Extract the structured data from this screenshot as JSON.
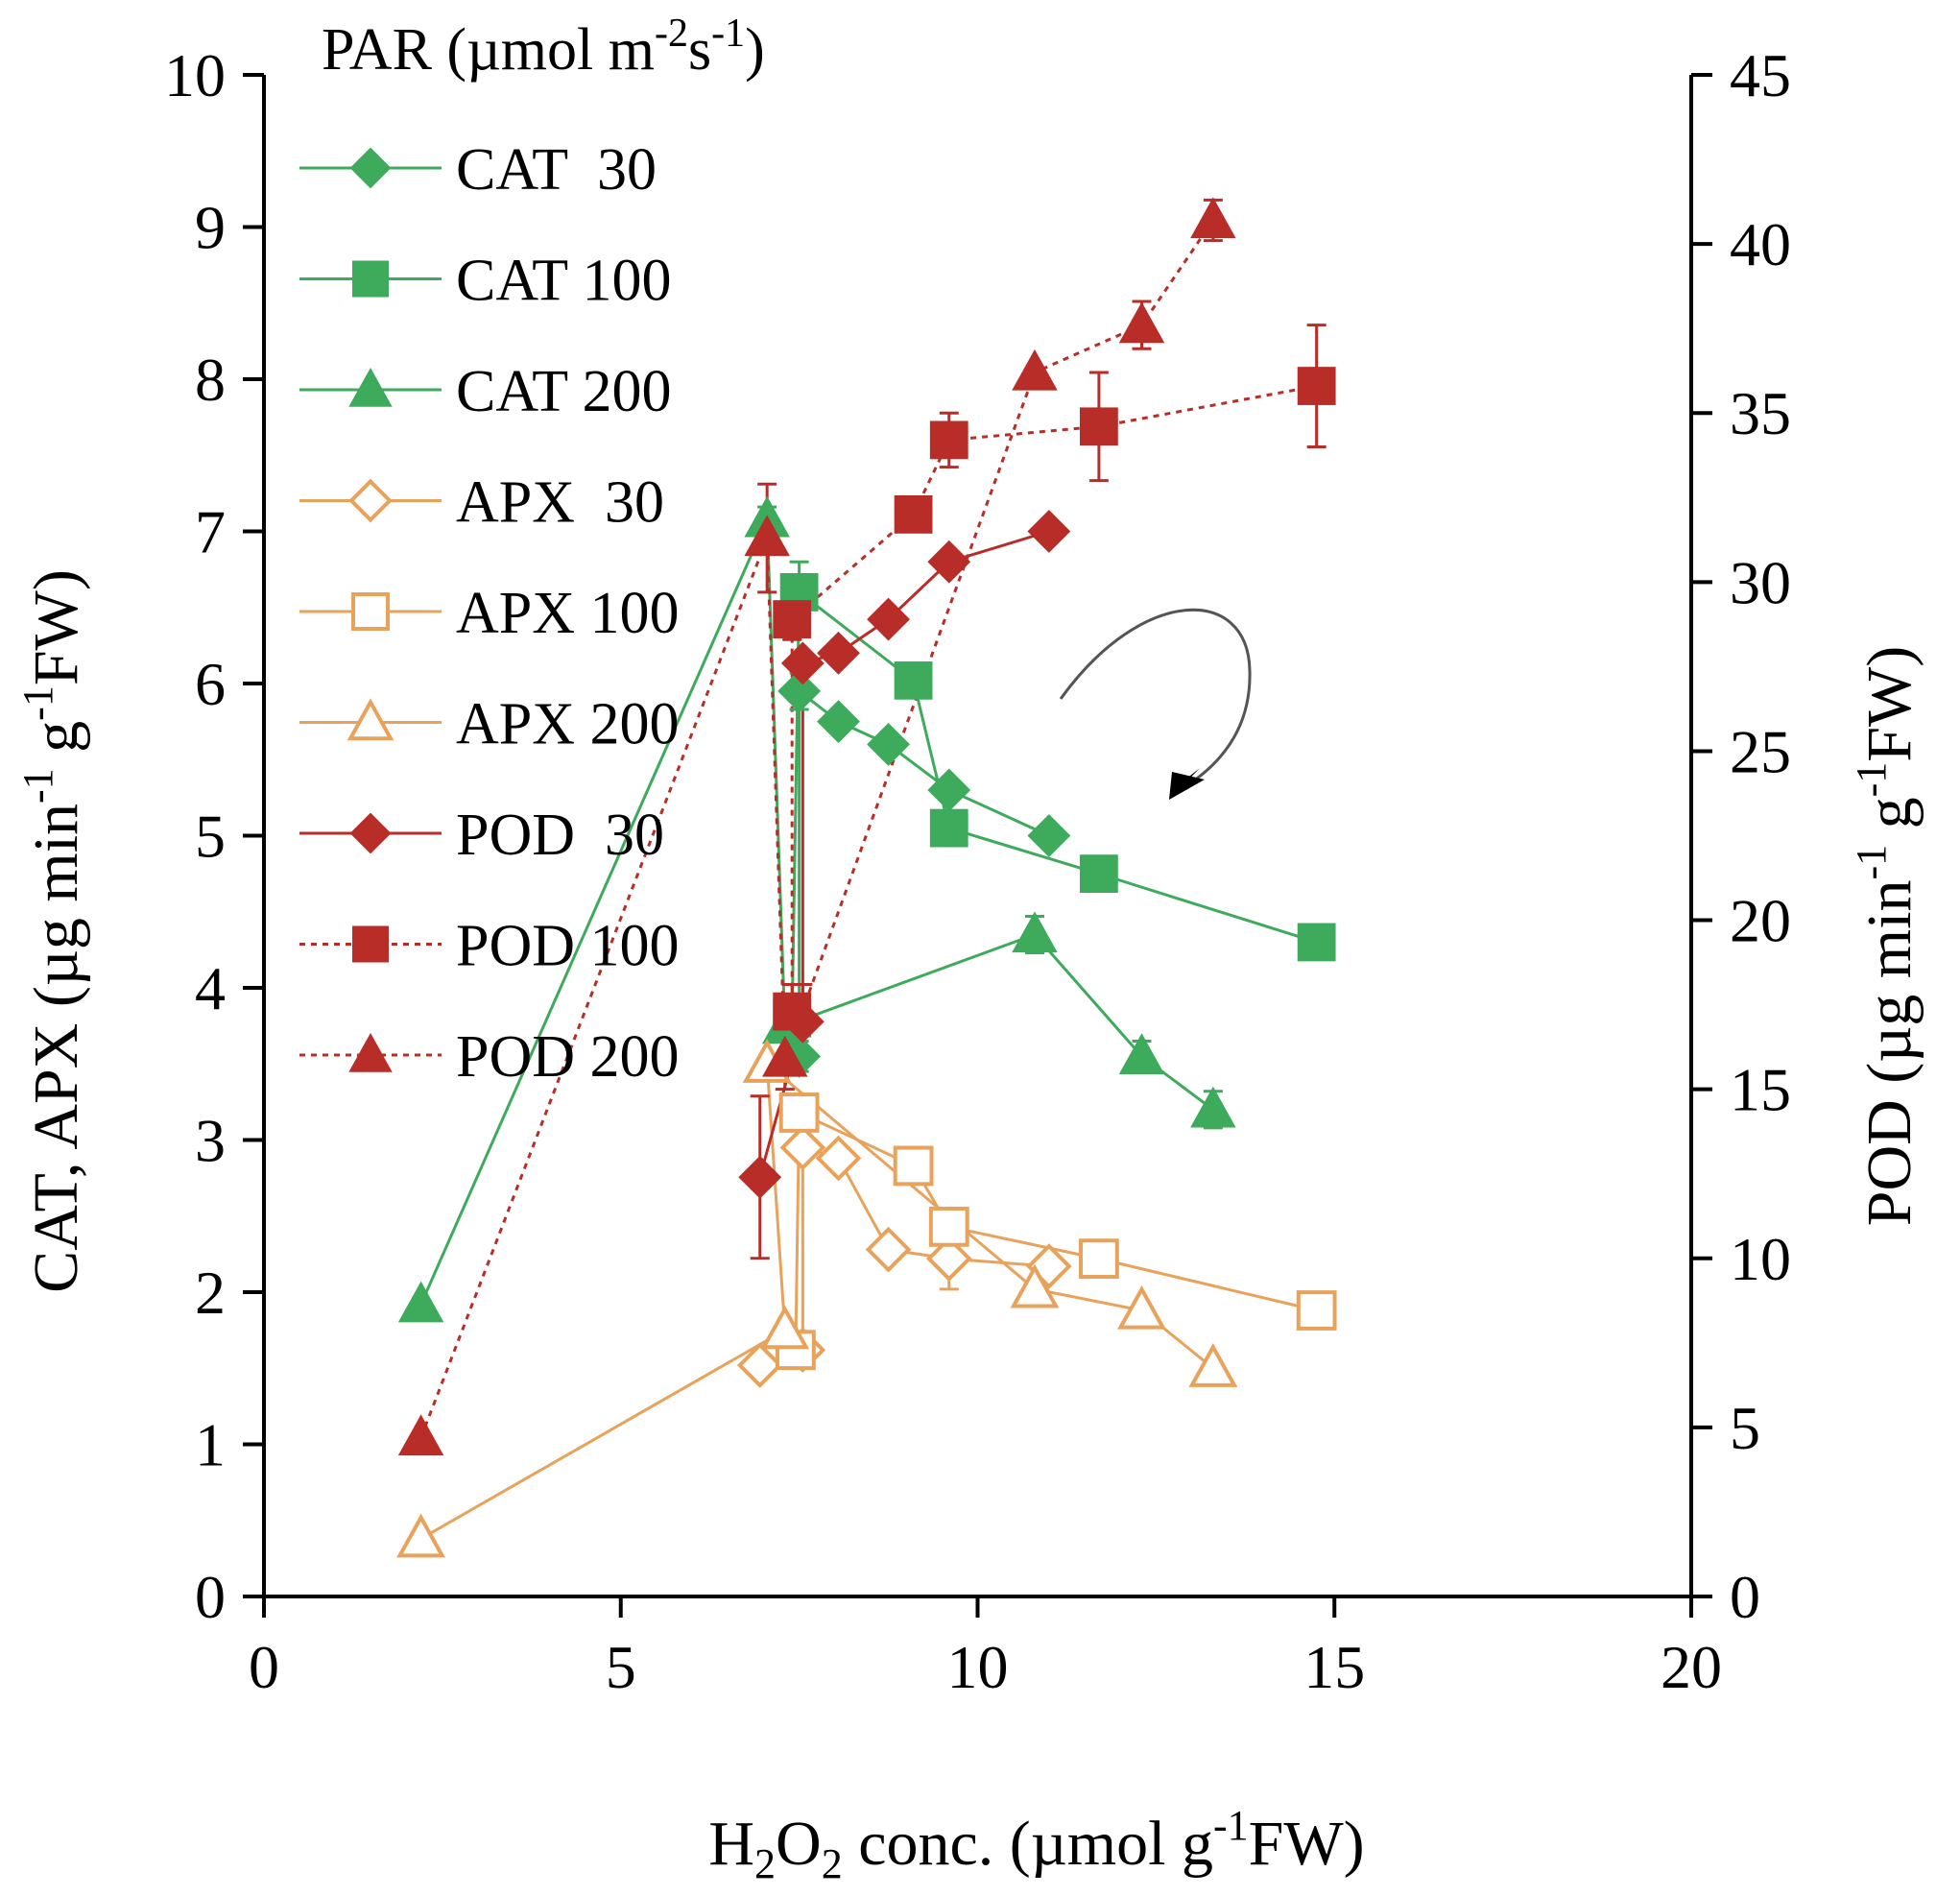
{
  "chart_data": {
    "type": "scatter",
    "x_axis": {
      "label_prefix": "H",
      "label_sub1": "2",
      "label_mid": "O",
      "label_sub2": "2",
      "label_rest": "  conc. (µmol g",
      "label_sup": "-1",
      "label_end": "FW)",
      "min": 0,
      "max": 20,
      "ticks": [
        0,
        5,
        10,
        15,
        20
      ]
    },
    "y_left": {
      "label_main": "CAT, APX (µg min",
      "label_sup1": "-1",
      "label_mid": "  g",
      "label_sup2": "-1",
      "label_end": "FW)",
      "min": 0,
      "max": 10,
      "ticks": [
        0,
        1,
        2,
        3,
        4,
        5,
        6,
        7,
        8,
        9,
        10
      ]
    },
    "y_right": {
      "label_main": "POD (µg min",
      "label_sup1": "-1",
      "label_mid": "  g",
      "label_sup2": "-1",
      "label_end": "FW)",
      "min": 0,
      "max": 45,
      "ticks": [
        0,
        5,
        10,
        15,
        20,
        25,
        30,
        35,
        40,
        45
      ]
    },
    "legend": {
      "title_main": "PAR (µmol m",
      "title_sup1": "-2",
      "title_mid": "s",
      "title_sup2": "-1",
      "title_end": ")"
    },
    "series": [
      {
        "name": "CAT  30",
        "axis": "left",
        "color": "#3daa5c",
        "marker": "diamond",
        "filled": true,
        "dashed": false,
        "points": [
          [
            7.5,
            3.55,
            0.1
          ],
          [
            7.5,
            5.95,
            0.12
          ],
          [
            8.05,
            5.75,
            0
          ],
          [
            8.75,
            5.6,
            0
          ],
          [
            9.6,
            5.3,
            0
          ],
          [
            11.0,
            5.0,
            0
          ]
        ]
      },
      {
        "name": "CAT 100",
        "axis": "left",
        "color": "#3daa5c",
        "marker": "square",
        "filled": true,
        "dashed": false,
        "points": [
          [
            7.4,
            3.8,
            0
          ],
          [
            7.5,
            6.6,
            0.2
          ],
          [
            9.1,
            6.02,
            0
          ],
          [
            9.6,
            5.05,
            0
          ],
          [
            11.7,
            4.75,
            0
          ],
          [
            14.75,
            4.3,
            0
          ]
        ]
      },
      {
        "name": "CAT 200",
        "axis": "left",
        "color": "#3daa5c",
        "marker": "triangle",
        "filled": true,
        "dashed": false,
        "points": [
          [
            2.2,
            1.92,
            0
          ],
          [
            7.05,
            7.08,
            0.08
          ],
          [
            7.3,
            3.75,
            0.1
          ],
          [
            10.8,
            4.35,
            0.12
          ],
          [
            12.3,
            3.55,
            0.1
          ],
          [
            13.3,
            3.2,
            0.12
          ]
        ]
      },
      {
        "name": "APX  30",
        "axis": "left",
        "color": "#e8a25a",
        "marker": "diamond",
        "filled": false,
        "dashed": false,
        "points": [
          [
            6.95,
            1.52,
            0
          ],
          [
            7.55,
            1.62,
            0
          ],
          [
            7.55,
            2.95,
            0
          ],
          [
            8.05,
            2.88,
            0
          ],
          [
            8.75,
            2.28,
            0
          ],
          [
            9.6,
            2.22,
            0.2
          ],
          [
            11.0,
            2.17,
            0
          ]
        ]
      },
      {
        "name": "APX 100",
        "axis": "left",
        "color": "#e8a25a",
        "marker": "square",
        "filled": false,
        "dashed": false,
        "points": [
          [
            7.45,
            1.62,
            0.1
          ],
          [
            7.5,
            3.18,
            0
          ],
          [
            9.1,
            2.83,
            0
          ],
          [
            9.6,
            2.43,
            0.1
          ],
          [
            11.7,
            2.22,
            0
          ],
          [
            14.75,
            1.88,
            0
          ]
        ]
      },
      {
        "name": "APX 200",
        "axis": "left",
        "color": "#e8a25a",
        "marker": "triangle",
        "filled": false,
        "dashed": false,
        "points": [
          [
            2.2,
            0.38,
            0
          ],
          [
            7.3,
            1.75,
            0
          ],
          [
            7.05,
            3.5,
            0
          ],
          [
            10.8,
            2.02,
            0
          ],
          [
            12.3,
            1.88,
            0
          ],
          [
            13.3,
            1.5,
            0
          ]
        ]
      },
      {
        "name": "POD  30",
        "axis": "right",
        "color": "#b82d27",
        "marker": "diamond",
        "filled": true,
        "dashed": false,
        "points": [
          [
            6.95,
            12.4,
            2.4
          ],
          [
            7.55,
            17.0,
            1.1
          ],
          [
            7.55,
            27.6,
            0
          ],
          [
            8.05,
            27.9,
            0
          ],
          [
            8.75,
            28.9,
            0
          ],
          [
            9.6,
            30.6,
            0
          ],
          [
            11.0,
            31.5,
            0
          ]
        ]
      },
      {
        "name": "POD 100",
        "axis": "right",
        "color": "#b82d27",
        "marker": "square",
        "filled": true,
        "dashed": true,
        "points": [
          [
            7.4,
            17.3,
            0.8
          ],
          [
            7.4,
            28.9,
            0.6
          ],
          [
            9.1,
            32.0,
            0
          ],
          [
            9.6,
            34.2,
            0.8
          ],
          [
            11.7,
            34.6,
            1.6
          ],
          [
            14.75,
            35.8,
            1.8
          ]
        ]
      },
      {
        "name": "POD 200",
        "axis": "right",
        "color": "#b82d27",
        "marker": "triangle",
        "filled": true,
        "dashed": true,
        "points": [
          [
            2.2,
            4.7,
            0
          ],
          [
            7.05,
            31.3,
            1.6
          ],
          [
            7.3,
            15.9,
            0.9
          ],
          [
            10.8,
            36.2,
            0
          ],
          [
            12.3,
            37.6,
            0.7
          ],
          [
            13.3,
            40.7,
            0.6
          ]
        ]
      }
    ]
  }
}
